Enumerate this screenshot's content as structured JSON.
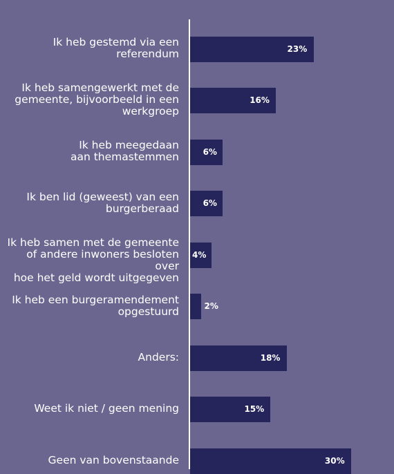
{
  "chart_data": {
    "type": "bar",
    "orientation": "horizontal",
    "categories": [
      "Ik heb gestemd via een\nreferendum",
      "Ik heb samengewerkt met de\ngemeente, bijvoorbeeld in een\nwerkgroep",
      "Ik heb meegedaan\naan themastemmen",
      "Ik ben lid (geweest) van een\nburgerberaad",
      "Ik heb samen met de gemeente\nof andere inwoners besloten over\nhoe het geld wordt uitgegeven",
      "Ik heb een burgeramendement\nopgestuurd",
      "Anders:",
      "Weet ik niet / geen mening",
      "Geen van bovenstaande"
    ],
    "values": [
      23,
      16,
      6,
      6,
      4,
      2,
      18,
      15,
      30
    ],
    "value_labels": [
      "23%",
      "16%",
      "6%",
      "6%",
      "4%",
      "2%",
      "18%",
      "15%",
      "30%"
    ],
    "xlim": [
      0,
      38
    ],
    "grid": false,
    "colors": {
      "background": "#6a6690",
      "bar": "#25255c",
      "text": "#ffffff",
      "axis": "#ffffff"
    }
  }
}
